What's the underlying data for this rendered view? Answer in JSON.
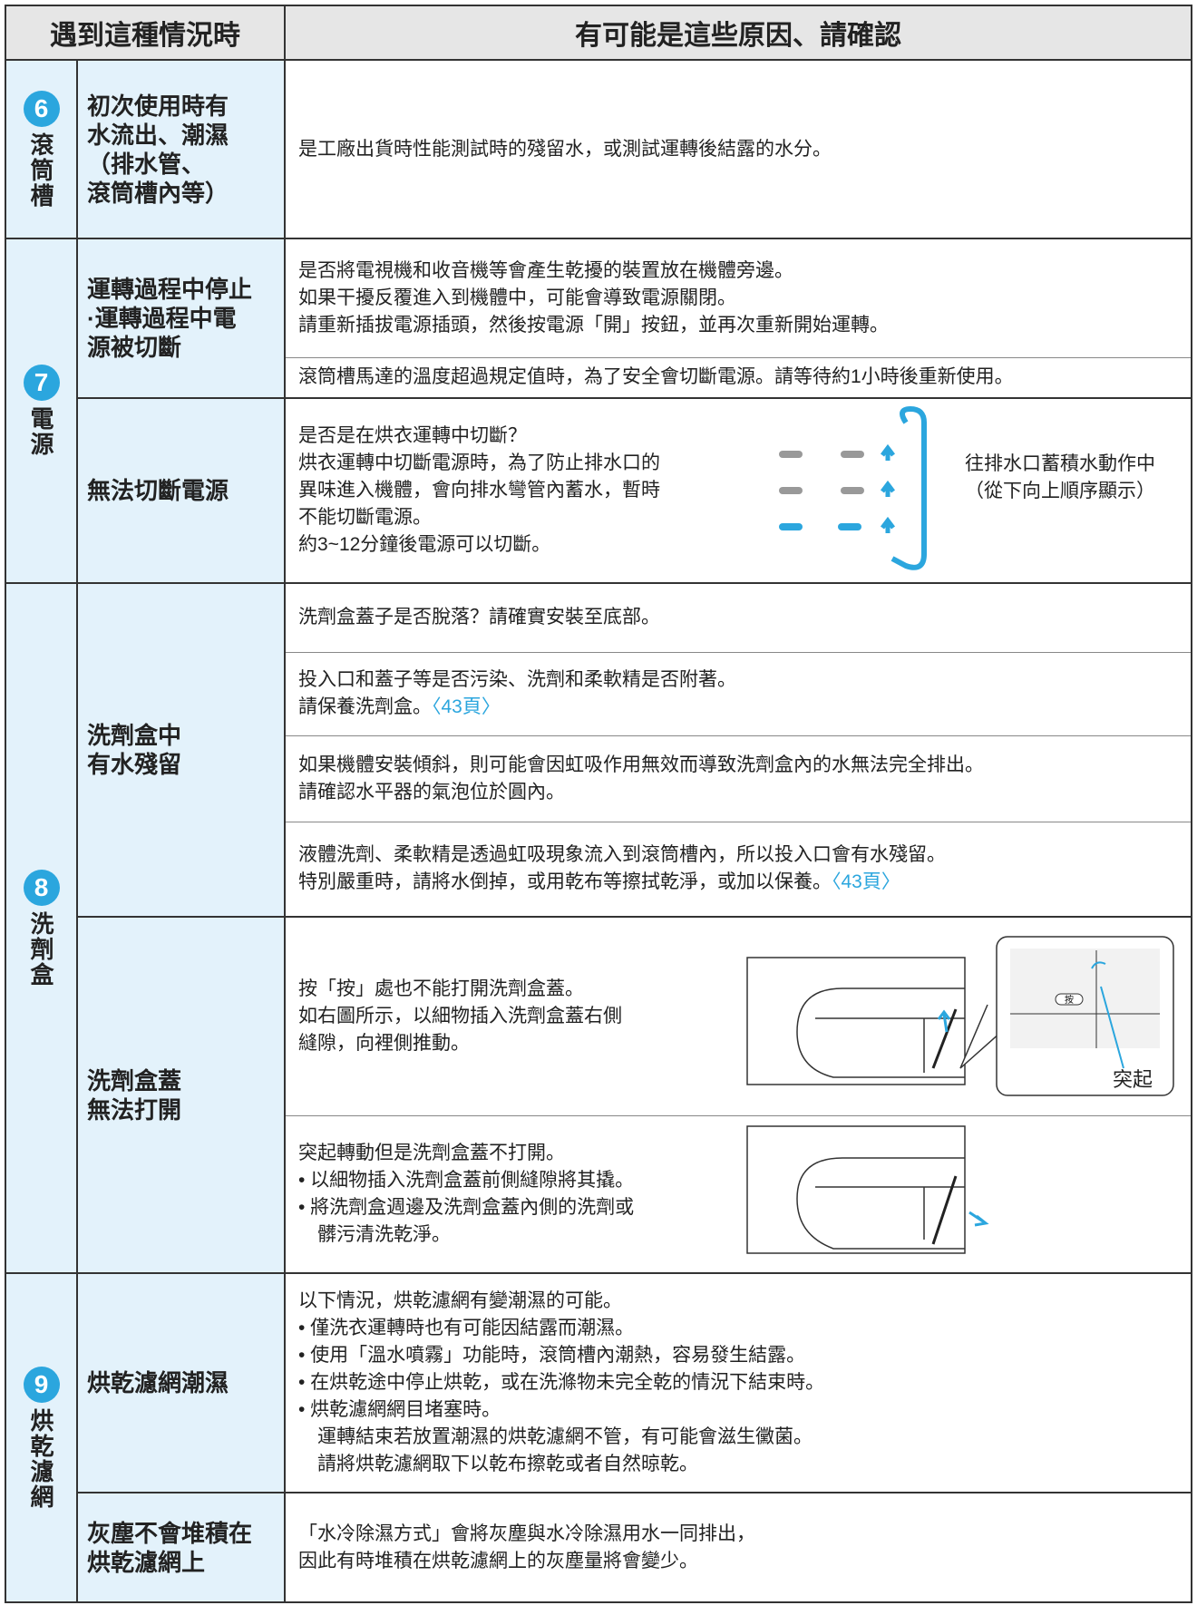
{
  "header": {
    "left": "遇到這種情況時",
    "right": "有可能是這些原因、請確認"
  },
  "sections": [
    {
      "number": "6",
      "name": "滾筒槽",
      "items": [
        {
          "problem": [
            "初次使用時有",
            "水流出、潮濕",
            "（排水管、",
            "滾筒槽內等）"
          ],
          "causes": [
            {
              "lines": [
                "是工廠出貨時性能測試時的殘留水，或測試運轉後結露的水分。"
              ]
            }
          ]
        }
      ]
    },
    {
      "number": "7",
      "name": "電源",
      "items": [
        {
          "problem": [
            "運轉過程中停止",
            "·運轉過程中電",
            "源被切斷"
          ],
          "causes": [
            {
              "lines": [
                "是否將電視機和收音機等會產生乾擾的裝置放在機體旁邊。",
                "如果干擾反覆進入到機體中，可能會導致電源關閉。",
                "請重新插拔電源插頭，然後按電源「開」按鈕，並再次重新開始運轉。"
              ]
            },
            {
              "lines": [
                "滾筒槽馬達的溫度超過規定值時，為了安全會切斷電源。請等待約1小時後重新使用。"
              ]
            }
          ]
        },
        {
          "problem": [
            "無法切斷電源"
          ],
          "causes": [
            {
              "lines": [
                "是否是在烘衣運轉中切斷？",
                "烘衣運轉中切斷電源時，為了防止排水口的",
                "異味進入機體，會向排水彎管內蓄水，暫時",
                "不能切斷電源。",
                "約3~12分鐘後電源可以切斷。"
              ],
              "caption": [
                "往排水口蓄積水動作中",
                "（從下向上順序顯示）"
              ]
            }
          ]
        }
      ]
    },
    {
      "number": "8",
      "name": "洗劑盒",
      "items": [
        {
          "problem": [
            "洗劑盒中",
            "有水殘留"
          ],
          "causes": [
            {
              "lines": [
                "洗劑盒蓋子是否脫落？請確實安裝至底部。"
              ]
            },
            {
              "lines": [
                "投入口和蓋子等是否污染、洗劑和柔軟精是否附著。",
                "請保養洗劑盒。"
              ],
              "link": "〈43頁〉"
            },
            {
              "lines": [
                "如果機體安裝傾斜，則可能會因虹吸作用無效而導致洗劑盒內的水無法完全排出。",
                "請確認水平器的氣泡位於圓內。"
              ]
            },
            {
              "lines": [
                "液體洗劑、柔軟精是透過虹吸現象流入到滾筒槽內，所以投入口會有水殘留。",
                "特別嚴重時，請將水倒掉，或用乾布等擦拭乾淨，或加以保養。"
              ],
              "link": "〈43頁〉"
            }
          ]
        },
        {
          "problem": [
            "洗劑盒蓋",
            "無法打開"
          ],
          "causes": [
            {
              "lines": [
                "按「按」處也不能打開洗劑盒蓋。",
                "如右圖所示，以細物插入洗劑盒蓋右側",
                "縫隙，向裡側推動。"
              ],
              "button": "按",
              "callout": "突起"
            },
            {
              "lines": [
                "突起轉動但是洗劑盒蓋不打開。",
                "• 以細物插入洗劑盒蓋前側縫隙將其撬。",
                "• 將洗劑盒週邊及洗劑盒蓋內側的洗劑或",
                "　髒污清洗乾淨。"
              ]
            }
          ]
        }
      ]
    },
    {
      "number": "9",
      "name": "烘乾濾網",
      "items": [
        {
          "problem": [
            "烘乾濾網潮濕"
          ],
          "causes": [
            {
              "lines": [
                "以下情況，烘乾濾網有變潮濕的可能。",
                "• 僅洗衣運轉時也有可能因結露而潮濕。",
                "• 使用「溫水噴霧」功能時，滾筒槽內潮熱，容易發生結露。",
                "• 在烘乾途中停止烘乾，或在洗滌物未完全乾的情況下結束時。",
                "• 烘乾濾網網目堵塞時。",
                "　運轉結束若放置潮濕的烘乾濾網不管，有可能會滋生黴菌。",
                "　請將烘乾濾網取下以乾布擦乾或者自然晾乾。"
              ]
            }
          ]
        },
        {
          "problem": [
            "灰塵不會堆積在",
            "烘乾濾網上"
          ],
          "causes": [
            {
              "lines": [
                "「水冷除濕方式」會將灰塵與水冷除濕用水一同排出，",
                "因此有時堆積在烘乾濾網上的灰塵量將會變少。"
              ]
            }
          ]
        }
      ]
    }
  ]
}
